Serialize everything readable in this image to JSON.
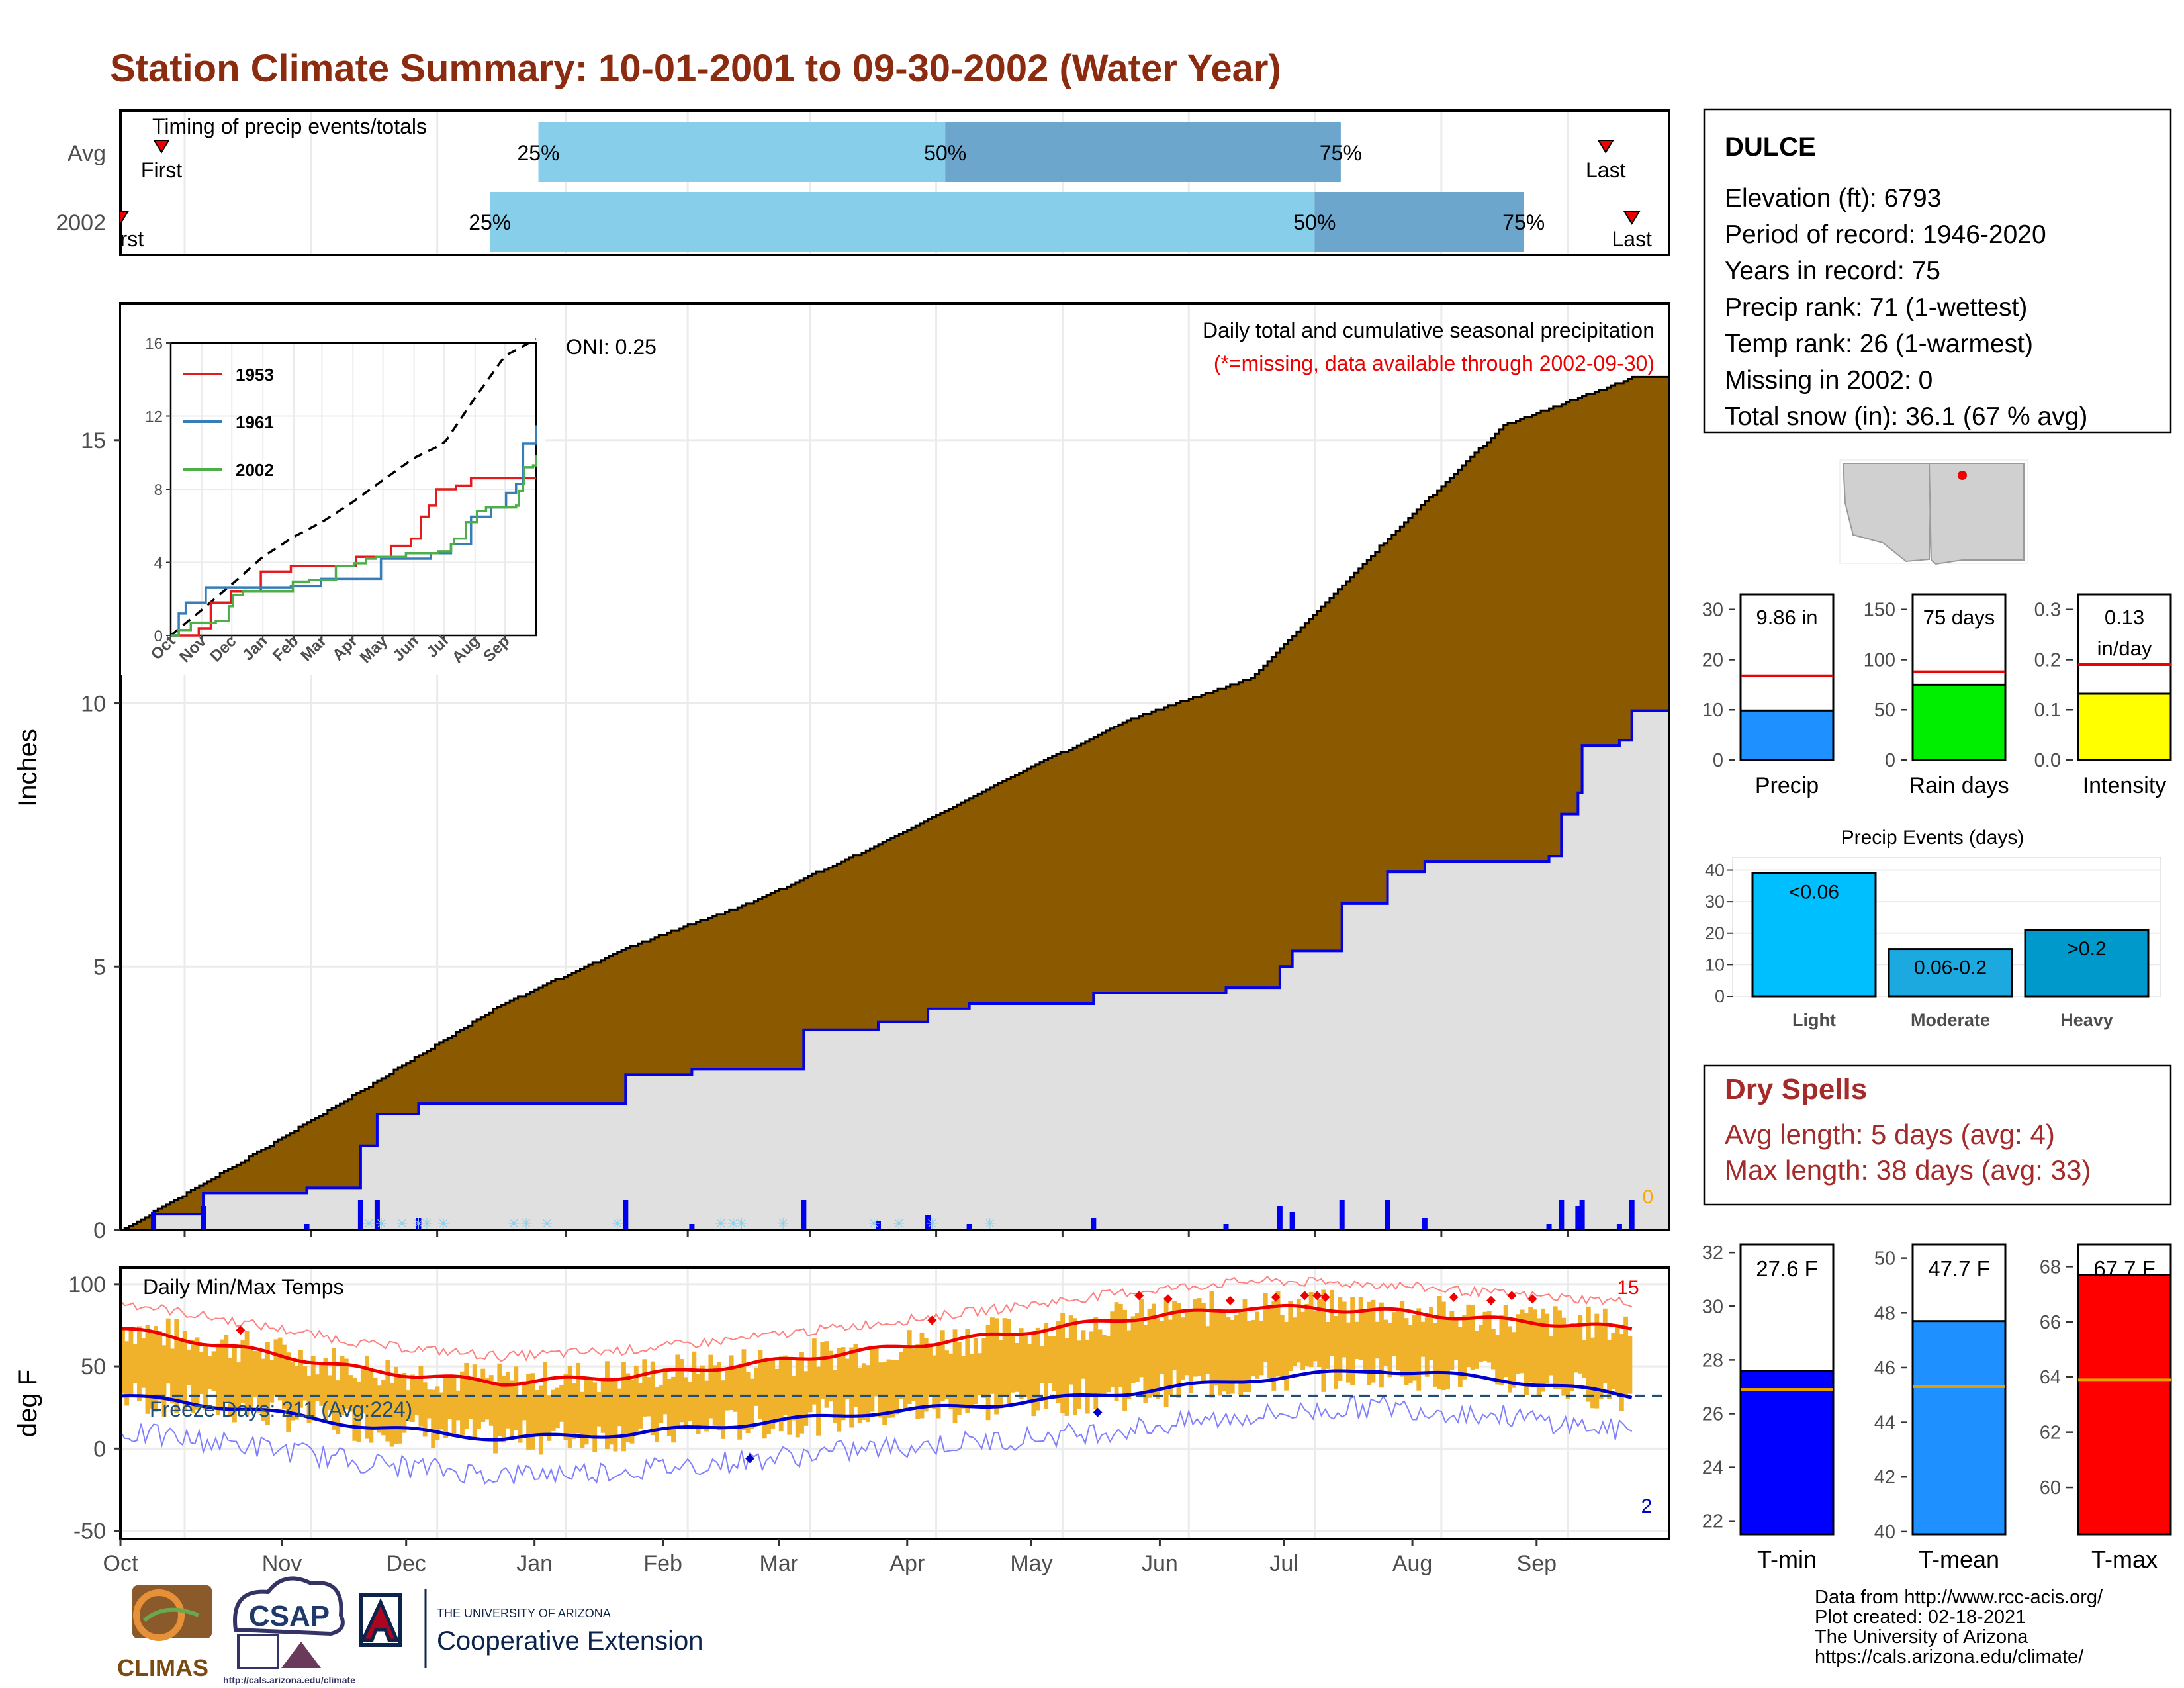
{
  "title": "Station Climate Summary: 10-01-2001 to 09-30-2002 (Water Year)",
  "colors": {
    "title": "#8B2C10",
    "avg_cum": "#8B5A00",
    "obs_cum_fill": "#E0E0E0",
    "obs_line": "#0000EE",
    "bars_light": "#87CEEB",
    "bars_dark": "#6CA6CD",
    "temp_range": "#F0B22A",
    "tmax_line": "#EE0000",
    "tmin_line": "#0000CD",
    "dry_spells": "#A52A2A"
  },
  "timing": {
    "title": "Timing of precip events/totals",
    "rows": [
      "Avg",
      "2002"
    ],
    "avg": {
      "first": "First",
      "last": "Last",
      "p25": "25%",
      "p50": "50%",
      "p75": "75%",
      "first_day": 11,
      "p25_day": 112,
      "p50_day": 221,
      "p75_day": 327,
      "last_day": 398
    },
    "y2002": {
      "first": "First",
      "last": "Last",
      "p25": "25%",
      "p50": "50%",
      "p75": "75%",
      "first_day": 0,
      "p25_day": 99,
      "p50_day": 320,
      "p75_day": 376,
      "last_day": 405
    }
  },
  "precip_panel": {
    "header": "Daily total and cumulative seasonal precipitation",
    "note": "(*=missing, data available through 2002-09-30)",
    "oni": "ONI: 0.25",
    "ylabel": "Inches",
    "yticks": [
      "0",
      "5",
      "10",
      "15"
    ],
    "missing_count": "0"
  },
  "inset": {
    "yticks": [
      "0",
      "4",
      "8",
      "12",
      "16"
    ],
    "xticks": [
      "Oct",
      "Nov",
      "Dec",
      "Jan",
      "Feb",
      "Mar",
      "Apr",
      "May",
      "Jun",
      "Jul",
      "Aug",
      "Sep"
    ],
    "legend": [
      "1953",
      "1961",
      "2002"
    ],
    "legend_colors": [
      "#E41A1C",
      "#377EB8",
      "#4DAF4A"
    ]
  },
  "temp_panel": {
    "title": "Daily Min/Max Temps",
    "ylabel": "deg F",
    "yticks": [
      "-50",
      "0",
      "50",
      "100"
    ],
    "freeze": "Freeze Days: 211 (Avg:224)",
    "max_records": "15",
    "min_records": "2",
    "xticks": [
      "Oct",
      "Nov",
      "Dec",
      "Jan",
      "Feb",
      "Mar",
      "Apr",
      "May",
      "Jun",
      "Jul",
      "Aug",
      "Sep"
    ]
  },
  "station": {
    "name": "DULCE",
    "lines": [
      "Elevation (ft): 6793",
      "Period of record: 1946-2020",
      "Years in record: 75",
      "Precip rank: 71 (1-wettest)",
      "Temp rank: 26 (1-warmest)",
      "Missing in 2002: 0",
      "Total snow (in): 36.1 (67 % avg)"
    ]
  },
  "summary_bars": [
    {
      "label": "Precip",
      "value_text": "9.86 in",
      "value": 9.86,
      "avg": 16.8,
      "ymax": 33,
      "ticks": [
        "0",
        "10",
        "20",
        "30"
      ],
      "tickvals": [
        0,
        10,
        20,
        30
      ],
      "color": "#1E90FF"
    },
    {
      "label": "Rain days",
      "value_text": "75 days",
      "value": 75,
      "avg": 88,
      "ymax": 165,
      "ticks": [
        "0",
        "50",
        "100",
        "150"
      ],
      "tickvals": [
        0,
        50,
        100,
        150
      ],
      "color": "#00EE00"
    },
    {
      "label": "Intensity",
      "value_text": "0.13 in/day",
      "value_line1": "0.13",
      "value_line2": "in/day",
      "value": 0.132,
      "avg": 0.19,
      "ymax": 0.33,
      "ticks": [
        "0.0",
        "0.1",
        "0.2",
        "0.3"
      ],
      "tickvals": [
        0,
        0.1,
        0.2,
        0.3
      ],
      "color": "#FFFF00"
    }
  ],
  "events": {
    "title": "Precip Events (days)",
    "categories": [
      "Light",
      "Moderate",
      "Heavy"
    ],
    "labels": [
      "<0.06",
      "0.06-0.2",
      ">0.2"
    ],
    "values": [
      39,
      15,
      21
    ],
    "ymax": 42,
    "ticks": [
      "0",
      "10",
      "20",
      "30",
      "40"
    ],
    "colors": [
      "#00BFFF",
      "#1CA9E0",
      "#0099CC"
    ]
  },
  "dry_spells": {
    "title": "Dry Spells",
    "avg": "Avg length: 5 days (avg: 4)",
    "max": "Max length: 38 days (avg: 33)"
  },
  "temp_bars": [
    {
      "label": "T-min",
      "value_text": "27.6 F",
      "value": 27.6,
      "avg": 26.9,
      "ymin": 21.5,
      "ymax": 32.3,
      "ticks": [
        "22",
        "24",
        "26",
        "28",
        "30",
        "32"
      ],
      "tickvals": [
        22,
        24,
        26,
        28,
        30,
        32
      ],
      "color": "#0000FF"
    },
    {
      "label": "T-mean",
      "value_text": "47.7 F",
      "value": 47.7,
      "avg": 45.3,
      "ymin": 39.9,
      "ymax": 50.5,
      "ticks": [
        "40",
        "42",
        "44",
        "46",
        "48",
        "50"
      ],
      "tickvals": [
        40,
        42,
        44,
        46,
        48,
        50
      ],
      "color": "#1E90FF"
    },
    {
      "label": "T-max",
      "value_text": "67.7 F",
      "value": 67.7,
      "avg": 63.9,
      "ymin": 58.3,
      "ymax": 68.8,
      "ticks": [
        "60",
        "62",
        "64",
        "66",
        "68"
      ],
      "tickvals": [
        60,
        62,
        64,
        66,
        68
      ],
      "color": "#FF0000"
    }
  ],
  "footer": {
    "lines": [
      "Data from http://www.rcc-acis.org/",
      "Plot created: 02-18-2021",
      "The University of Arizona",
      "https://cals.arizona.edu/climate/"
    ],
    "logo_climas": "CLIMAS",
    "logo_csap": "CSAP",
    "logo_csap_url": "http://cals.arizona.edu/climate",
    "logo_ua_small": "THE UNIVERSITY OF ARIZONA",
    "logo_ua_big": "Cooperative Extension"
  },
  "chart_data": {
    "type": "area",
    "title": "Daily total and cumulative seasonal precipitation",
    "ylabel": "Inches",
    "ylim": [
      0,
      17.6
    ],
    "x_unit": "day of water year",
    "xticks": [
      "Oct",
      "Nov",
      "Dec",
      "Jan",
      "Feb",
      "Mar",
      "Apr",
      "May",
      "Jun",
      "Jul",
      "Aug",
      "Sep"
    ],
    "series": [
      {
        "name": "avg cumulative",
        "x": [
          0,
          31,
          61,
          92,
          123,
          151,
          182,
          212,
          243,
          273,
          304,
          334,
          365
        ],
        "values": [
          0,
          1.4,
          2.8,
          4.3,
          5.4,
          6.2,
          7.3,
          8.5,
          9.7,
          10.5,
          13.0,
          15.3,
          16.2
        ]
      },
      {
        "name": "2002 cumulative",
        "x": [
          0,
          8,
          20,
          45,
          55,
          58,
          62,
          72,
          90,
          122,
          138,
          165,
          183,
          195,
          205,
          235,
          255,
          267,
          280,
          283,
          295,
          306,
          315,
          345,
          348,
          352,
          353,
          362,
          365
        ],
        "values": [
          0,
          0.3,
          0.7,
          0.8,
          0.8,
          1.6,
          2.2,
          2.4,
          2.4,
          2.95,
          3.05,
          3.8,
          3.95,
          4.2,
          4.3,
          4.5,
          4.5,
          4.6,
          5.0,
          5.3,
          6.2,
          6.8,
          7.0,
          7.1,
          7.9,
          8.3,
          9.2,
          9.3,
          9.86
        ]
      }
    ],
    "temps": {
      "ylim": [
        -55,
        110
      ],
      "tmax_avg": [
        {
          "x": 0,
          "y": 73
        },
        {
          "x": 31,
          "y": 60
        },
        {
          "x": 61,
          "y": 47
        },
        {
          "x": 92,
          "y": 40
        },
        {
          "x": 123,
          "y": 44
        },
        {
          "x": 151,
          "y": 51
        },
        {
          "x": 182,
          "y": 60
        },
        {
          "x": 212,
          "y": 69
        },
        {
          "x": 243,
          "y": 79
        },
        {
          "x": 273,
          "y": 86
        },
        {
          "x": 304,
          "y": 84
        },
        {
          "x": 334,
          "y": 78
        },
        {
          "x": 365,
          "y": 73
        }
      ],
      "tmin_avg": [
        {
          "x": 0,
          "y": 32
        },
        {
          "x": 31,
          "y": 24
        },
        {
          "x": 61,
          "y": 13
        },
        {
          "x": 92,
          "y": 6
        },
        {
          "x": 123,
          "y": 9
        },
        {
          "x": 151,
          "y": 15
        },
        {
          "x": 182,
          "y": 22
        },
        {
          "x": 212,
          "y": 27
        },
        {
          "x": 243,
          "y": 34
        },
        {
          "x": 273,
          "y": 42
        },
        {
          "x": 304,
          "y": 48
        },
        {
          "x": 334,
          "y": 42
        },
        {
          "x": 365,
          "y": 32
        }
      ],
      "freeze_line": 32
    }
  }
}
